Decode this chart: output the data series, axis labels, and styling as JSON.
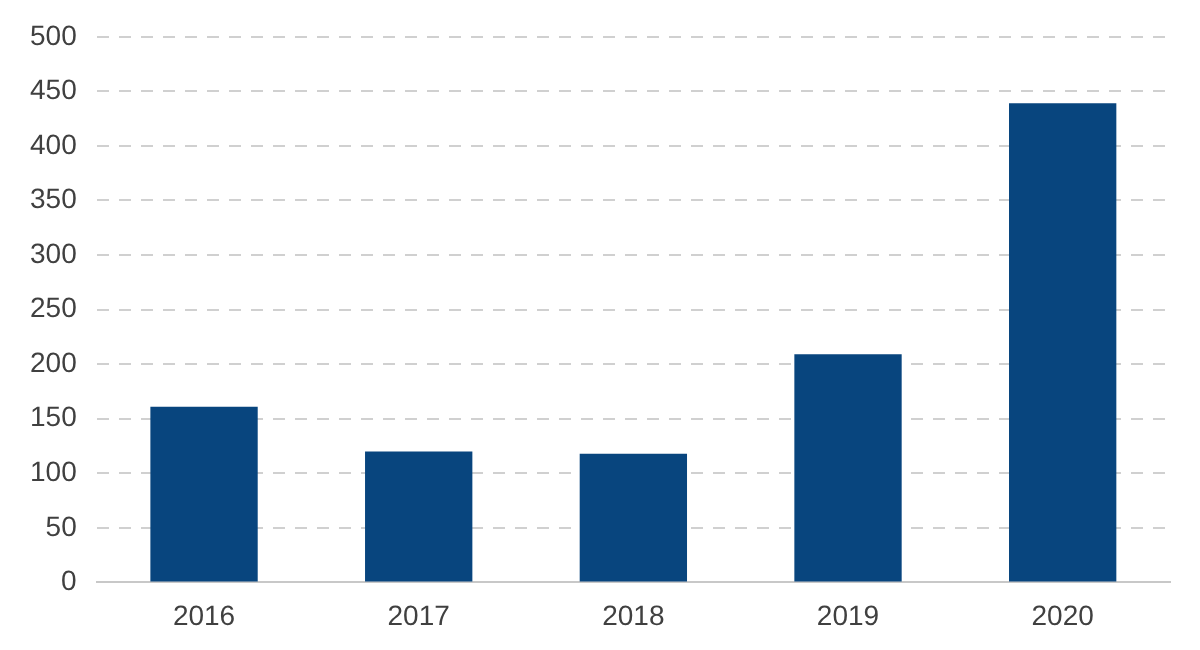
{
  "chart_data": {
    "type": "bar",
    "categories": [
      "2016",
      "2017",
      "2018",
      "2019",
      "2020"
    ],
    "values": [
      161,
      120,
      118,
      209,
      439
    ],
    "color": "#08457e",
    "ylim": [
      0,
      500
    ],
    "yticks": [
      0,
      50,
      100,
      150,
      200,
      250,
      300,
      350,
      400,
      450,
      500
    ],
    "grid": "y",
    "legend": false
  }
}
